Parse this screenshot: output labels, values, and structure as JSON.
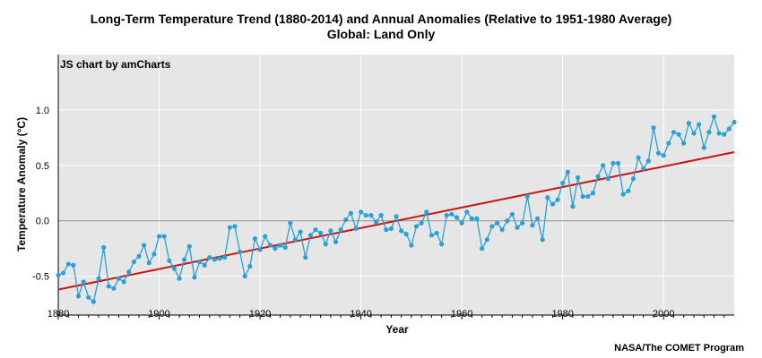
{
  "header": {
    "title": "Long-Term Temperature Trend (1880-2014) and Annual Anomalies (Relative to 1951-1980 Average)",
    "subtitle": "Global: Land Only"
  },
  "watermark": "JS chart by amCharts",
  "credit": "NASA/The COMET Program",
  "colors": {
    "plot_background": "#e6e6e6",
    "series": "#2aa0d9",
    "trend": "#c8160f",
    "grid": "#ffffff",
    "zero_line": "#8c8c8c"
  },
  "chart_data": {
    "type": "line",
    "xlabel": "Year",
    "ylabel": "Temperature Anomaly (°C)",
    "xlim": [
      1880,
      2014
    ],
    "ylim": [
      -0.85,
      1.5
    ],
    "x_ticks": [
      "1880",
      "1900",
      "1920",
      "1940",
      "1960",
      "1980",
      "2000"
    ],
    "y_ticks": [
      "1.0",
      "0.5",
      "0.0",
      "-0.5"
    ],
    "grid": true,
    "series": [
      {
        "type": "line-with-markers",
        "x": [
          1880,
          1881,
          1882,
          1883,
          1884,
          1885,
          1886,
          1887,
          1888,
          1889,
          1890,
          1891,
          1892,
          1893,
          1894,
          1895,
          1896,
          1897,
          1898,
          1899,
          1900,
          1901,
          1902,
          1903,
          1904,
          1905,
          1906,
          1907,
          1908,
          1909,
          1910,
          1911,
          1912,
          1913,
          1914,
          1915,
          1916,
          1917,
          1918,
          1919,
          1920,
          1921,
          1922,
          1923,
          1924,
          1925,
          1926,
          1927,
          1928,
          1929,
          1930,
          1931,
          1932,
          1933,
          1934,
          1935,
          1936,
          1937,
          1938,
          1939,
          1940,
          1941,
          1942,
          1943,
          1944,
          1945,
          1946,
          1947,
          1948,
          1949,
          1950,
          1951,
          1952,
          1953,
          1954,
          1955,
          1956,
          1957,
          1958,
          1959,
          1960,
          1961,
          1962,
          1963,
          1964,
          1965,
          1966,
          1967,
          1968,
          1969,
          1970,
          1971,
          1972,
          1973,
          1974,
          1975,
          1976,
          1977,
          1978,
          1979,
          1980,
          1981,
          1982,
          1983,
          1984,
          1985,
          1986,
          1987,
          1988,
          1989,
          1990,
          1991,
          1992,
          1993,
          1994,
          1995,
          1996,
          1997,
          1998,
          1999,
          2000,
          2001,
          2002,
          2003,
          2004,
          2005,
          2006,
          2007,
          2008,
          2009,
          2010,
          2011,
          2012,
          2013,
          2014
        ],
        "y": [
          -0.49,
          -0.47,
          -0.39,
          -0.4,
          -0.68,
          -0.55,
          -0.69,
          -0.73,
          -0.52,
          -0.24,
          -0.59,
          -0.61,
          -0.52,
          -0.55,
          -0.46,
          -0.37,
          -0.32,
          -0.22,
          -0.38,
          -0.3,
          -0.14,
          -0.14,
          -0.36,
          -0.43,
          -0.52,
          -0.35,
          -0.23,
          -0.51,
          -0.37,
          -0.4,
          -0.33,
          -0.35,
          -0.34,
          -0.33,
          -0.06,
          -0.05,
          -0.28,
          -0.5,
          -0.41,
          -0.16,
          -0.26,
          -0.14,
          -0.22,
          -0.25,
          -0.22,
          -0.24,
          -0.02,
          -0.17,
          -0.1,
          -0.33,
          -0.13,
          -0.08,
          -0.11,
          -0.21,
          -0.09,
          -0.19,
          -0.08,
          0.01,
          0.07,
          -0.07,
          0.08,
          0.05,
          0.05,
          -0.01,
          0.05,
          -0.08,
          -0.07,
          0.04,
          -0.09,
          -0.12,
          -0.22,
          -0.05,
          -0.02,
          0.08,
          -0.13,
          -0.11,
          -0.21,
          0.05,
          0.06,
          0.03,
          -0.02,
          0.08,
          0.02,
          0.02,
          -0.25,
          -0.17,
          -0.05,
          -0.02,
          -0.08,
          0.0,
          0.06,
          -0.06,
          -0.02,
          0.22,
          -0.04,
          0.02,
          -0.17,
          0.21,
          0.15,
          0.19,
          0.34,
          0.44,
          0.13,
          0.39,
          0.22,
          0.22,
          0.25,
          0.4,
          0.5,
          0.38,
          0.52,
          0.52,
          0.24,
          0.27,
          0.38,
          0.57,
          0.47,
          0.54,
          0.84,
          0.61,
          0.59,
          0.7,
          0.8,
          0.78,
          0.7,
          0.88,
          0.79,
          0.87,
          0.66,
          0.8,
          0.94,
          0.79,
          0.78,
          0.83,
          0.89
        ]
      },
      {
        "type": "trend-line",
        "x": [
          1880,
          2014
        ],
        "y": [
          -0.62,
          0.62
        ]
      }
    ]
  }
}
